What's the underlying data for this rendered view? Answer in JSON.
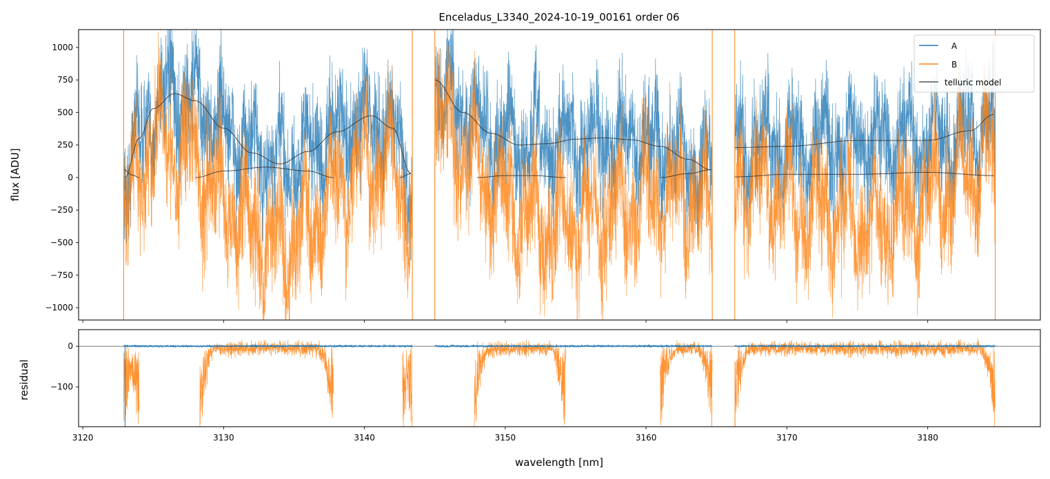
{
  "chart_data": {
    "type": "line",
    "title": "Enceladus_L3340_2024-10-19_00161  order 06",
    "xlabel": "wavelength [nm]",
    "xlim": [
      3119.7,
      3188.0
    ],
    "xticks": [
      3120,
      3130,
      3140,
      3150,
      3160,
      3170,
      3180
    ],
    "colors": {
      "A": "#1f77b4",
      "B": "#ff7f0e",
      "model": "#333333"
    },
    "legend": {
      "placement": "top-right",
      "entries": [
        "A",
        "B",
        "telluric model"
      ]
    },
    "panels": [
      {
        "name": "flux",
        "ylabel": "flux [ADU]",
        "ylim": [
          -1095,
          1137
        ],
        "yticks": [
          -1000,
          -750,
          -500,
          -250,
          0,
          250,
          500,
          750,
          1000
        ],
        "segments": [
          [
            3122.9,
            3143.4
          ],
          [
            3145.0,
            3164.7
          ],
          [
            3166.3,
            3184.8
          ]
        ],
        "series": [
          {
            "name": "A",
            "description_of_noise_amplitude": 350
          },
          {
            "name": "B",
            "description_of_noise_amplitude": 350
          }
        ],
        "telluric_model_A": [
          [
            [
              3123,
              0
            ],
            [
              3124,
              300
            ],
            [
              3125,
              530
            ],
            [
              3126.5,
              645
            ],
            [
              3128,
              590
            ],
            [
              3130,
              380
            ],
            [
              3132,
              190
            ],
            [
              3134,
              105
            ],
            [
              3136,
              200
            ],
            [
              3138,
              350
            ],
            [
              3140.5,
              475
            ],
            [
              3142,
              380
            ],
            [
              3143.3,
              30
            ]
          ],
          [
            [
              3145,
              750
            ],
            [
              3147,
              500
            ],
            [
              3149,
              340
            ],
            [
              3151,
              250
            ],
            [
              3153,
              260
            ],
            [
              3155,
              295
            ],
            [
              3157,
              305
            ],
            [
              3159,
              290
            ],
            [
              3161,
              240
            ],
            [
              3163,
              140
            ],
            [
              3164.6,
              60
            ]
          ],
          [
            [
              3166.3,
              230
            ],
            [
              3170,
              240
            ],
            [
              3175,
              285
            ],
            [
              3180,
              285
            ],
            [
              3183,
              360
            ],
            [
              3184.7,
              485
            ]
          ]
        ],
        "telluric_model_B": [
          [
            [
              3122.9,
              60
            ],
            [
              3123.5,
              20
            ],
            [
              3124,
              0
            ]
          ],
          [
            [
              3128,
              0
            ],
            [
              3130,
              50
            ],
            [
              3133,
              80
            ],
            [
              3136,
              50
            ],
            [
              3137.8,
              0
            ]
          ],
          [
            [
              3142.5,
              0
            ],
            [
              3143.3,
              30
            ]
          ],
          [
            [
              3148,
              0
            ],
            [
              3150,
              15
            ],
            [
              3152,
              15
            ],
            [
              3154.3,
              0
            ]
          ],
          [
            [
              3161,
              0
            ],
            [
              3163,
              30
            ],
            [
              3164.6,
              60
            ]
          ],
          [
            [
              3166.3,
              5
            ],
            [
              3170,
              25
            ],
            [
              3175,
              25
            ],
            [
              3180,
              40
            ],
            [
              3184.7,
              15
            ]
          ]
        ]
      },
      {
        "name": "residual",
        "ylabel": "residual",
        "ylim": [
          -198,
          41
        ],
        "yticks": [
          -100,
          0
        ],
        "B_good_ranges": [
          [
            3122.9,
            3124
          ],
          [
            3128.3,
            3137.8
          ],
          [
            3142.7,
            3143.4
          ],
          [
            3147.8,
            3154.3
          ],
          [
            3161,
            3164.7
          ],
          [
            3166.3,
            3184.8
          ]
        ]
      }
    ]
  }
}
